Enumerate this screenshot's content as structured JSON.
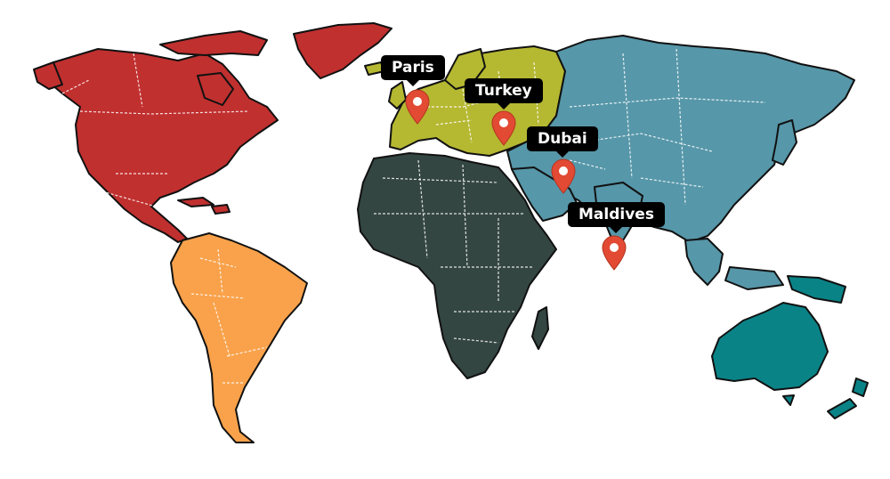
{
  "colors": {
    "north_america": "#c0302f",
    "south_america": "#f9a24b",
    "europe": "#b5b831",
    "africa": "#344642",
    "asia": "#5697a9",
    "oceania": "#0a8387",
    "pin": "#e24a33"
  },
  "markers": [
    {
      "id": "paris",
      "label": "Paris"
    },
    {
      "id": "turkey",
      "label": "Turkey"
    },
    {
      "id": "dubai",
      "label": "Dubai"
    },
    {
      "id": "maldives",
      "label": "Maldives"
    }
  ]
}
